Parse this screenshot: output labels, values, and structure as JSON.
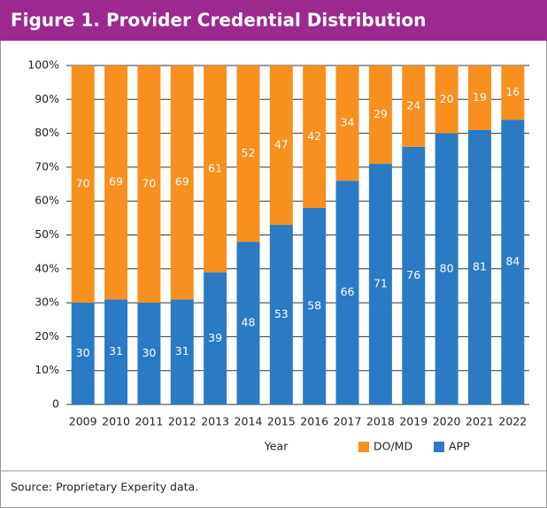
{
  "chart_data": {
    "type": "stacked_bar",
    "title": "Figure 1. Provider Credential Distribution",
    "x_label": "Year",
    "source": "Source: Proprietary Experity data.",
    "categories": [
      "2009",
      "2010",
      "2011",
      "2012",
      "2013",
      "2014",
      "2015",
      "2016",
      "2017",
      "2018",
      "2019",
      "2020",
      "2021",
      "2022"
    ],
    "series": [
      {
        "name": "APP",
        "color": "#2a7bc4",
        "values": [
          30,
          31,
          30,
          31,
          39,
          48,
          53,
          58,
          66,
          71,
          76,
          80,
          81,
          84
        ]
      },
      {
        "name": "DO/MD",
        "color": "#f7901e",
        "values": [
          70,
          69,
          70,
          69,
          61,
          52,
          47,
          42,
          34,
          29,
          24,
          20,
          19,
          16
        ]
      }
    ],
    "ylim": [
      0,
      100
    ],
    "yticks": [
      0,
      {
        "value": 10,
        "label": "10%"
      },
      {
        "value": 20,
        "label": "20%"
      },
      {
        "value": 30,
        "label": "30%"
      },
      {
        "value": 40,
        "label": "40%"
      },
      {
        "value": 50,
        "label": "50%"
      },
      {
        "value": 60,
        "label": "60%"
      },
      {
        "value": 70,
        "label": "70%"
      },
      {
        "value": 80,
        "label": "80%"
      },
      {
        "value": 90,
        "label": "90%"
      },
      {
        "value": 100,
        "label": "100%"
      }
    ],
    "grid": true
  }
}
